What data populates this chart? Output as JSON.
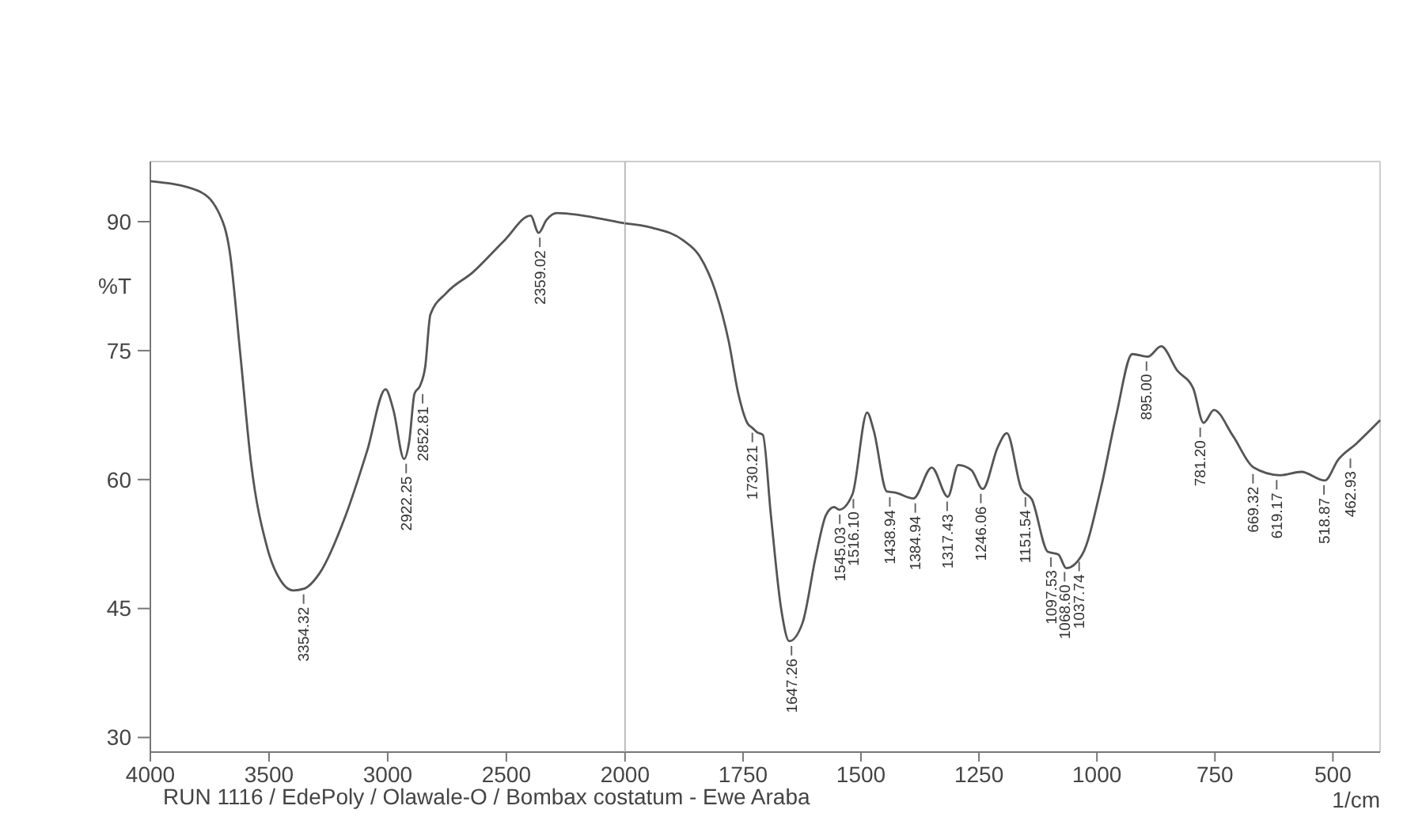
{
  "chart_data": [
    {
      "type": "line",
      "ylabel": "%T",
      "xlim": [
        4000,
        2000
      ],
      "ylim": [
        28.3,
        97
      ],
      "xticks": [
        4000,
        3500,
        3000,
        2500,
        2000
      ],
      "yticks": [
        30,
        45,
        60,
        75,
        90
      ],
      "grid": false,
      "series": [
        {
          "color": "#555555",
          "x": [
            4000,
            3800,
            3709,
            3666,
            3620,
            3576,
            3509,
            3442,
            3398,
            3353,
            3287,
            3176,
            3087,
            3009,
            2976,
            2931,
            2909,
            2887,
            2864,
            2842,
            2820,
            2753,
            2642,
            2509,
            2398,
            2364,
            2331,
            2287,
            2020,
            2000
          ],
          "values": [
            94.7,
            93.6,
            90.9,
            86.6,
            74.3,
            62,
            52.2,
            47.9,
            47.1,
            47.3,
            49.1,
            55.9,
            63.3,
            70.5,
            68.1,
            62.4,
            64.5,
            70,
            70.9,
            73.1,
            79.2,
            81.7,
            84.1,
            87.8,
            90.7,
            88.7,
            90.2,
            91,
            89.9,
            89.8
          ]
        }
      ],
      "annotations": [
        {
          "text": "3354.32",
          "x": 3354.32,
          "y": 47.2
        },
        {
          "text": "2922.25",
          "x": 2922.25,
          "y": 62.4
        },
        {
          "text": "2852.81",
          "x": 2852.81,
          "y": 70.5
        },
        {
          "text": "2359.02",
          "x": 2359.02,
          "y": 88.7
        },
        "RUN 1116 / EdePoly / Olawale-O /  Bombax costatum - Ewe Araba"
      ]
    },
    {
      "type": "line",
      "xlabel": "1/cm",
      "xlim": [
        2000,
        400
      ],
      "ylim": [
        28.3,
        97
      ],
      "xticks": [
        1750,
        1500,
        1250,
        1000,
        750,
        500
      ],
      "yticks": [
        30,
        45,
        60,
        75,
        90
      ],
      "tick_labels": "x",
      "grid": false,
      "series": [
        {
          "color": "#555555",
          "x": [
            2000,
            1943,
            1876,
            1842,
            1809,
            1780,
            1760,
            1740,
            1730,
            1720,
            1708,
            1691,
            1669,
            1652,
            1624,
            1596,
            1574,
            1557,
            1546,
            1518,
            1487,
            1473,
            1445,
            1428,
            1389,
            1350,
            1316,
            1294,
            1266,
            1242,
            1210,
            1191,
            1160,
            1138,
            1104,
            1082,
            1065,
            1031,
            992,
            959,
            925,
            892,
            864,
            830,
            796,
            774,
            752,
            712,
            668,
            612,
            567,
            517,
            489,
            450,
            400
          ],
          "values": [
            89.8,
            89.3,
            87.8,
            86,
            82,
            76,
            70,
            66.5,
            66,
            65.5,
            65.2,
            55.9,
            44.9,
            41.2,
            43.3,
            51,
            55.9,
            56.8,
            56.5,
            58.3,
            67.8,
            65.7,
            58.6,
            58.5,
            57.8,
            61.4,
            58,
            61.7,
            61.1,
            58.9,
            63.8,
            65.4,
            58.9,
            57.7,
            51.6,
            51.3,
            49.7,
            51.3,
            58.9,
            67.5,
            74.6,
            74.3,
            75.5,
            72.7,
            70.6,
            66.6,
            68.1,
            65.1,
            61.4,
            60.5,
            60.9,
            59.9,
            62.3,
            64.2,
            66.9
          ]
        }
      ],
      "annotations": [
        {
          "text": "1730.21",
          "x": 1730.21,
          "y": 66
        },
        {
          "text": "1647.26",
          "x": 1647.26,
          "y": 41.2
        },
        {
          "text": "1545.03",
          "x": 1545.03,
          "y": 56.5
        },
        {
          "text": "1516.10",
          "x": 1516.1,
          "y": 58.3
        },
        {
          "text": "1438.94",
          "x": 1438.94,
          "y": 58.5
        },
        {
          "text": "1384.94",
          "x": 1384.94,
          "y": 57.8
        },
        {
          "text": "1317.43",
          "x": 1317.43,
          "y": 58
        },
        {
          "text": "1246.06",
          "x": 1246.06,
          "y": 58.9
        },
        {
          "text": "1151.54",
          "x": 1151.54,
          "y": 58.5
        },
        {
          "text": "1097.53",
          "x": 1097.53,
          "y": 51.5
        },
        {
          "text": "1068.60",
          "x": 1068.6,
          "y": 49.8
        },
        {
          "text": "1037.74",
          "x": 1037.74,
          "y": 51
        },
        {
          "text": "895.00",
          "x": 895,
          "y": 74.3
        },
        {
          "text": "781.20",
          "x": 781.2,
          "y": 66.6
        },
        {
          "text": "669.32",
          "x": 669.32,
          "y": 61.2
        },
        {
          "text": "619.17",
          "x": 619.17,
          "y": 60.5
        },
        {
          "text": "518.87",
          "x": 518.87,
          "y": 59.9
        },
        {
          "text": "462.93",
          "x": 462.93,
          "y": 63
        }
      ]
    }
  ]
}
